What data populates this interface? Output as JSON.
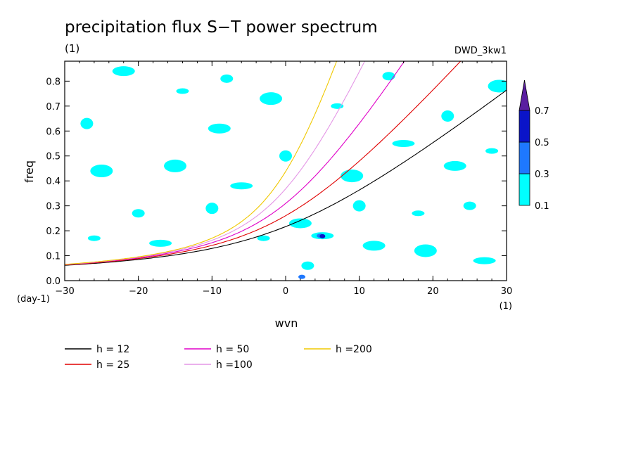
{
  "chart_data": {
    "type": "heatmap",
    "title": "precipitation flux S−T power spectrum",
    "unit_label": "(1)",
    "dataset": "DWD_3kw1",
    "xlabel": "wvn",
    "x_unit": "(1)",
    "ylabel": "freq",
    "y_unit": "(day-1)",
    "xlim": [
      -30,
      30
    ],
    "ylim": [
      0,
      0.88
    ],
    "x_ticks": [
      -30,
      -20,
      -10,
      0,
      10,
      20,
      30
    ],
    "y_ticks": [
      0.0,
      0.1,
      0.2,
      0.3,
      0.4,
      0.5,
      0.6,
      0.7,
      0.8
    ],
    "colorbar": {
      "levels": [
        0.1,
        0.3,
        0.5,
        0.7
      ],
      "colors": [
        "#00ffff",
        "#1e78ff",
        "#0a14c8",
        "#5a1ea0"
      ]
    },
    "contour_blobs": [
      {
        "x": -26,
        "y": 0.17,
        "level": 0
      },
      {
        "x": -25,
        "y": 0.44,
        "level": 0
      },
      {
        "x": -27,
        "y": 0.63,
        "level": 0
      },
      {
        "x": -22,
        "y": 0.84,
        "level": 0
      },
      {
        "x": -20,
        "y": 0.27,
        "level": 0
      },
      {
        "x": -17,
        "y": 0.15,
        "level": 0
      },
      {
        "x": -14,
        "y": 0.76,
        "level": 0
      },
      {
        "x": -15,
        "y": 0.46,
        "level": 0
      },
      {
        "x": -10,
        "y": 0.29,
        "level": 0
      },
      {
        "x": -9,
        "y": 0.61,
        "level": 0
      },
      {
        "x": -8,
        "y": 0.81,
        "level": 0
      },
      {
        "x": -6,
        "y": 0.38,
        "level": 0
      },
      {
        "x": -3,
        "y": 0.17,
        "level": 0
      },
      {
        "x": -2,
        "y": 0.73,
        "level": 0
      },
      {
        "x": 0,
        "y": 0.5,
        "level": 0
      },
      {
        "x": 2,
        "y": 0.23,
        "level": 0
      },
      {
        "x": 3,
        "y": 0.06,
        "level": 0
      },
      {
        "x": 5,
        "y": 0.18,
        "level": 0
      },
      {
        "x": 7,
        "y": 0.7,
        "level": 0
      },
      {
        "x": 9,
        "y": 0.42,
        "level": 0
      },
      {
        "x": 10,
        "y": 0.3,
        "level": 0
      },
      {
        "x": 12,
        "y": 0.14,
        "level": 0
      },
      {
        "x": 14,
        "y": 0.82,
        "level": 0
      },
      {
        "x": 16,
        "y": 0.55,
        "level": 0
      },
      {
        "x": 18,
        "y": 0.27,
        "level": 0
      },
      {
        "x": 19,
        "y": 0.12,
        "level": 0
      },
      {
        "x": 22,
        "y": 0.66,
        "level": 0
      },
      {
        "x": 23,
        "y": 0.46,
        "level": 0
      },
      {
        "x": 25,
        "y": 0.3,
        "level": 0
      },
      {
        "x": 27,
        "y": 0.08,
        "level": 0
      },
      {
        "x": 28,
        "y": 0.52,
        "level": 0
      },
      {
        "x": 29,
        "y": 0.78,
        "level": 0
      },
      {
        "x": 4.7,
        "y": 0.18,
        "level": 1
      },
      {
        "x": 2.2,
        "y": 0.015,
        "level": 1
      },
      {
        "x": 5.0,
        "y": 0.178,
        "level": 2
      }
    ],
    "series": [
      {
        "name": "h = 12",
        "h": 12,
        "color": "#000000"
      },
      {
        "name": "h = 25",
        "h": 25,
        "color": "#e00000"
      },
      {
        "name": "h = 50",
        "h": 50,
        "color": "#e000c8"
      },
      {
        "name": "h =100",
        "h": 100,
        "color": "#e496e6"
      },
      {
        "name": "h =200",
        "h": 200,
        "color": "#f0c800"
      }
    ]
  }
}
